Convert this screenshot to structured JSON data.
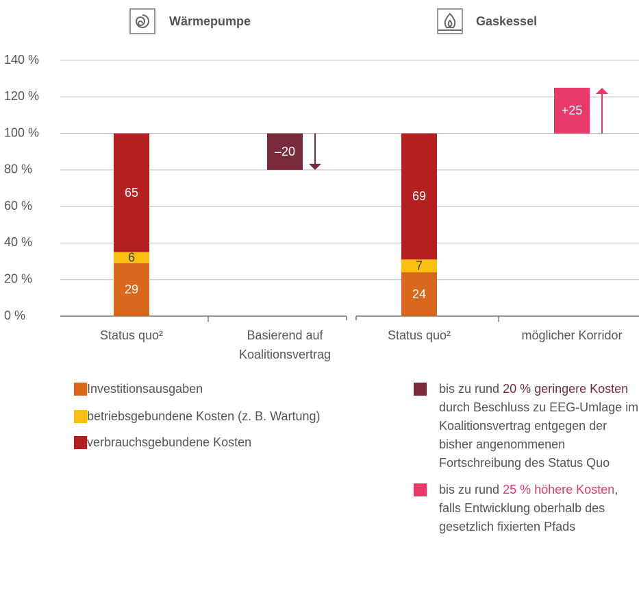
{
  "chart_data": {
    "type": "bar",
    "groups": [
      "Wärmepumpe",
      "Gaskessel"
    ],
    "categories": [
      "Status quo²",
      "Basierend auf Koalitionsvertrag",
      "Status quo²",
      "möglicher Korridor"
    ],
    "series": [
      {
        "name": "Investitionsausgaben",
        "color": "#d9681c",
        "values": [
          29,
          null,
          24,
          null
        ]
      },
      {
        "name": "betriebsgebundene Kosten (z. B. Wartung)",
        "color": "#fbbf12",
        "values": [
          6,
          null,
          7,
          null
        ]
      },
      {
        "name": "verbrauchsgebundene Kosten",
        "color": "#b3201f",
        "values": [
          65,
          null,
          69,
          null
        ]
      }
    ],
    "changes": [
      {
        "color": "#7a2b3b",
        "values": [
          null,
          -20,
          null,
          null
        ],
        "value_labels": [
          null,
          "–20",
          null,
          null
        ],
        "legend": [
          "bis zu rund ",
          "20 % geringere Kosten",
          " durch Beschluss zu EEG-Umlage im Koalitionsvertrag entgegen der bisher angenommenen Fortschreibung des Status Quo"
        ]
      },
      {
        "color": "#e8396a",
        "values": [
          null,
          null,
          null,
          25
        ],
        "value_labels": [
          null,
          null,
          null,
          "+25"
        ],
        "legend": [
          "bis zu rund ",
          "25 % höhere Kosten",
          ", falls Entwicklung oberhalb des gesetzlich fixierten Pfads"
        ]
      }
    ],
    "ylim": [
      0,
      140
    ],
    "yticks": [
      {
        "value": 0,
        "label": "0 %"
      },
      {
        "value": 20,
        "label": "20 %"
      },
      {
        "value": 40,
        "label": "40 %"
      },
      {
        "value": 60,
        "label": "60 %"
      },
      {
        "value": 80,
        "label": "80 %"
      },
      {
        "value": 100,
        "label": "100 %"
      },
      {
        "value": 120,
        "label": "120 %"
      },
      {
        "value": 140,
        "label": "140 %"
      }
    ],
    "grid": true
  }
}
